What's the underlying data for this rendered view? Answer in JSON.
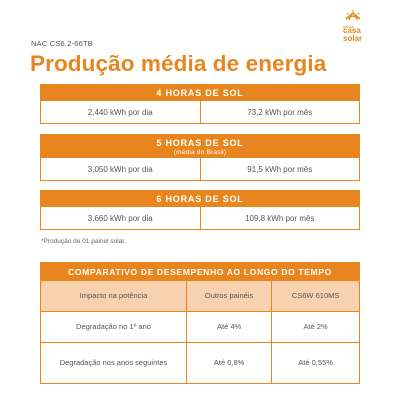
{
  "model": "NAC CS6.2-66TB",
  "logo": {
    "small": "minha",
    "casa": "casa",
    "solar": "solar",
    "color": "#e08a1e"
  },
  "title": "Produção média de energia",
  "blocks": [
    {
      "header": "4 HORAS DE SOL",
      "sub": "",
      "daily": "2,440 kWh por dia",
      "monthly": "73,2 kWh por mês"
    },
    {
      "header": "5 HORAS DE SOL",
      "sub": "(média do Brasil)",
      "daily": "3,050 kWh por dia",
      "monthly": "91,5 kWh por mês"
    },
    {
      "header": "6 HORAS DE SOL",
      "sub": "",
      "daily": "3,660 kWh por dia",
      "monthly": "109,8 kWh por mês"
    }
  ],
  "footnote": "*Produção de 01 painel solar.",
  "comparison": {
    "title": "COMPARATIVO DE DESEMPENHO AO LONGO DO TEMPO",
    "columns": [
      "Impacto na potência",
      "Outros painéis",
      "CS6W 610MS"
    ],
    "rows": [
      [
        "Degradação no 1º ano",
        "Até 4%",
        "Até 2%"
      ],
      [
        "Degradação nos anos seguintes",
        "Até 0,8%",
        "Até 0,55%"
      ]
    ]
  },
  "colors": {
    "accent": "#e8851e",
    "header_fill": "#f8d2ae",
    "text": "#555555"
  }
}
